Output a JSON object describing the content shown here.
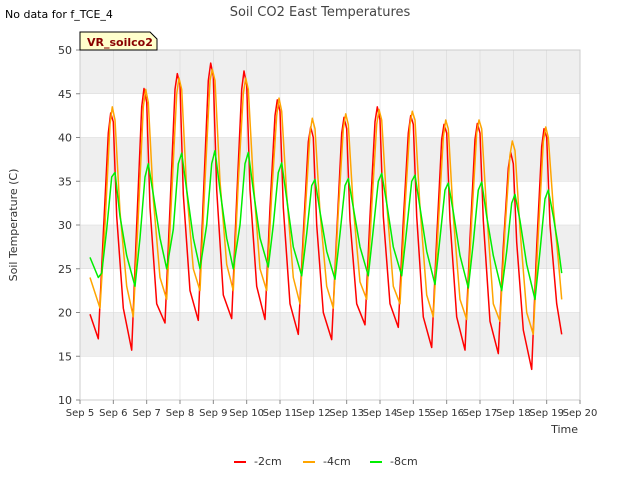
{
  "header": {
    "no_data_note": "No data for f_TCE_4",
    "station_badge": "VR_soilco2"
  },
  "colors": {
    "band": "#efefef",
    "grid": "#d8d8d8",
    "badge_fill": "#ffffcc",
    "badge_text": "#880000"
  },
  "chart_data": {
    "type": "line",
    "title": "Soil CO2 East Temperatures",
    "xlabel": "Time",
    "ylabel": "Soil Temperature (C)",
    "xlim": [
      5,
      20
    ],
    "ylim": [
      10,
      50
    ],
    "x_ticks": [
      {
        "value": 5,
        "label": "Sep 5"
      },
      {
        "value": 6,
        "label": "Sep 6"
      },
      {
        "value": 7,
        "label": "Sep 7"
      },
      {
        "value": 8,
        "label": "Sep 8"
      },
      {
        "value": 9,
        "label": "Sep 9"
      },
      {
        "value": 10,
        "label": "Sep 10"
      },
      {
        "value": 11,
        "label": "Sep 11"
      },
      {
        "value": 12,
        "label": "Sep 12"
      },
      {
        "value": 13,
        "label": "Sep 13"
      },
      {
        "value": 14,
        "label": "Sep 14"
      },
      {
        "value": 15,
        "label": "Sep 15"
      },
      {
        "value": 16,
        "label": "Sep 16"
      },
      {
        "value": 17,
        "label": "Sep 17"
      },
      {
        "value": 18,
        "label": "Sep 18"
      },
      {
        "value": 19,
        "label": "Sep 19"
      },
      {
        "value": 20,
        "label": "Sep 20"
      }
    ],
    "y_ticks": [
      10,
      15,
      20,
      25,
      30,
      35,
      40,
      45,
      50
    ],
    "grid": true,
    "legend_position": "bottom",
    "series": [
      {
        "name": "-2cm",
        "color": "#ff0000",
        "x": [
          5.3,
          5.55,
          5.7,
          5.85,
          5.92,
          6.0,
          6.1,
          6.3,
          6.55,
          6.7,
          6.85,
          6.92,
          7.0,
          7.1,
          7.3,
          7.55,
          7.7,
          7.85,
          7.92,
          8.0,
          8.1,
          8.3,
          8.55,
          8.7,
          8.85,
          8.92,
          9.0,
          9.1,
          9.3,
          9.55,
          9.7,
          9.85,
          9.92,
          10.0,
          10.1,
          10.3,
          10.55,
          10.7,
          10.85,
          10.92,
          11.0,
          11.1,
          11.3,
          11.55,
          11.7,
          11.85,
          11.92,
          12.0,
          12.1,
          12.3,
          12.55,
          12.7,
          12.85,
          12.92,
          13.0,
          13.1,
          13.3,
          13.55,
          13.7,
          13.85,
          13.92,
          14.0,
          14.1,
          14.3,
          14.55,
          14.7,
          14.85,
          14.92,
          15.0,
          15.1,
          15.3,
          15.55,
          15.7,
          15.85,
          15.92,
          16.0,
          16.1,
          16.3,
          16.55,
          16.7,
          16.85,
          16.92,
          17.0,
          17.1,
          17.3,
          17.55,
          17.7,
          17.85,
          17.92,
          18.0,
          18.1,
          18.3,
          18.55,
          18.7,
          18.85,
          18.92,
          19.0,
          19.1,
          19.3,
          19.45
        ],
        "y": [
          19.8,
          17.0,
          29.0,
          40.5,
          42.8,
          41.8,
          31.0,
          20.5,
          15.7,
          30.0,
          43.5,
          45.6,
          44.0,
          32.0,
          21.0,
          18.8,
          32.0,
          45.5,
          47.3,
          46.0,
          33.5,
          22.5,
          19.1,
          33.0,
          46.5,
          48.5,
          47.0,
          34.0,
          22.0,
          19.3,
          33.0,
          45.5,
          47.6,
          46.0,
          34.0,
          23.0,
          19.2,
          32.0,
          42.5,
          44.3,
          43.0,
          32.0,
          21.0,
          17.5,
          29.0,
          39.5,
          41.2,
          40.0,
          30.0,
          20.0,
          16.9,
          29.0,
          40.5,
          42.3,
          41.0,
          30.5,
          21.0,
          18.6,
          31.0,
          41.8,
          43.5,
          42.0,
          31.0,
          21.0,
          18.3,
          30.5,
          40.5,
          42.5,
          41.5,
          31.0,
          19.5,
          16.0,
          28.5,
          39.8,
          41.5,
          40.5,
          30.5,
          19.5,
          15.7,
          28.5,
          39.8,
          41.6,
          40.5,
          30.5,
          19.0,
          15.3,
          27.5,
          36.5,
          38.3,
          37.0,
          28.0,
          18.0,
          13.5,
          27.5,
          39.0,
          41.0,
          40.0,
          30.0,
          21.0,
          17.5
        ]
      },
      {
        "name": "-4cm",
        "color": "#ffa500",
        "x": [
          5.3,
          5.6,
          5.75,
          5.9,
          5.97,
          6.05,
          6.2,
          6.4,
          6.6,
          6.75,
          6.9,
          6.97,
          7.05,
          7.2,
          7.4,
          7.6,
          7.75,
          7.9,
          7.97,
          8.05,
          8.2,
          8.4,
          8.6,
          8.75,
          8.9,
          8.97,
          9.05,
          9.2,
          9.4,
          9.6,
          9.75,
          9.9,
          9.97,
          10.05,
          10.2,
          10.4,
          10.6,
          10.75,
          10.9,
          10.97,
          11.05,
          11.2,
          11.4,
          11.6,
          11.75,
          11.9,
          11.97,
          12.05,
          12.2,
          12.4,
          12.6,
          12.75,
          12.9,
          12.97,
          13.05,
          13.2,
          13.4,
          13.6,
          13.75,
          13.9,
          13.97,
          14.05,
          14.2,
          14.4,
          14.6,
          14.75,
          14.9,
          14.97,
          15.05,
          15.2,
          15.4,
          15.6,
          15.75,
          15.9,
          15.97,
          16.05,
          16.2,
          16.4,
          16.6,
          16.75,
          16.9,
          16.97,
          17.05,
          17.2,
          17.4,
          17.6,
          17.75,
          17.9,
          17.97,
          18.05,
          18.2,
          18.4,
          18.6,
          18.75,
          18.9,
          18.97,
          19.05,
          19.2,
          19.35,
          19.45
        ],
        "y": [
          24.0,
          20.5,
          30.0,
          41.5,
          43.5,
          42.0,
          31.5,
          23.0,
          19.5,
          31.0,
          43.5,
          45.5,
          44.0,
          33.0,
          24.0,
          21.5,
          33.5,
          45.0,
          46.8,
          45.5,
          34.0,
          25.0,
          22.5,
          35.0,
          46.5,
          47.8,
          46.5,
          35.0,
          25.5,
          22.5,
          35.0,
          45.0,
          46.8,
          45.5,
          35.0,
          25.0,
          22.5,
          33.5,
          42.5,
          44.5,
          43.0,
          33.5,
          24.0,
          21.0,
          31.0,
          40.5,
          42.2,
          41.0,
          31.5,
          23.0,
          20.5,
          31.5,
          41.0,
          42.7,
          41.5,
          32.0,
          23.5,
          21.5,
          32.0,
          41.5,
          43.2,
          42.0,
          32.5,
          23.0,
          21.0,
          32.0,
          41.5,
          43.0,
          42.0,
          32.0,
          22.0,
          19.5,
          30.0,
          40.0,
          42.0,
          41.0,
          31.0,
          21.5,
          19.2,
          30.5,
          40.5,
          42.0,
          41.0,
          31.5,
          21.0,
          19.0,
          29.5,
          38.0,
          39.6,
          38.5,
          29.5,
          20.0,
          17.5,
          29.0,
          39.5,
          41.2,
          40.0,
          32.0,
          26.0,
          21.5
        ]
      },
      {
        "name": "-8cm",
        "color": "#00ee00",
        "x": [
          5.3,
          5.55,
          5.65,
          5.8,
          5.95,
          6.05,
          6.2,
          6.4,
          6.65,
          6.8,
          6.95,
          7.05,
          7.2,
          7.4,
          7.6,
          7.8,
          7.95,
          8.05,
          8.2,
          8.4,
          8.6,
          8.8,
          8.95,
          9.05,
          9.2,
          9.4,
          9.6,
          9.8,
          9.95,
          10.05,
          10.2,
          10.4,
          10.65,
          10.8,
          10.95,
          11.05,
          11.2,
          11.4,
          11.65,
          11.8,
          11.95,
          12.05,
          12.2,
          12.4,
          12.65,
          12.8,
          12.95,
          13.05,
          13.2,
          13.4,
          13.65,
          13.8,
          13.95,
          14.05,
          14.2,
          14.4,
          14.65,
          14.8,
          14.95,
          15.05,
          15.2,
          15.4,
          15.65,
          15.8,
          15.95,
          16.05,
          16.2,
          16.4,
          16.65,
          16.8,
          16.95,
          17.05,
          17.2,
          17.4,
          17.65,
          17.8,
          17.95,
          18.05,
          18.2,
          18.4,
          18.65,
          18.8,
          18.95,
          19.05,
          19.2,
          19.35,
          19.45
        ],
        "y": [
          26.3,
          24.0,
          24.5,
          29.5,
          35.5,
          36.0,
          31.0,
          26.5,
          23.0,
          28.5,
          35.5,
          37.0,
          33.5,
          28.5,
          25.0,
          29.5,
          37.0,
          38.2,
          34.0,
          28.5,
          25.0,
          30.0,
          37.0,
          38.5,
          34.0,
          28.5,
          25.0,
          30.0,
          37.0,
          38.3,
          34.0,
          28.5,
          25.2,
          30.0,
          36.0,
          37.1,
          33.0,
          27.5,
          24.2,
          29.0,
          34.5,
          35.2,
          31.5,
          27.0,
          23.8,
          29.0,
          34.5,
          35.3,
          32.0,
          27.5,
          24.2,
          29.5,
          35.0,
          35.9,
          32.5,
          27.5,
          24.2,
          29.5,
          35.0,
          35.7,
          32.0,
          27.0,
          23.2,
          28.5,
          34.0,
          34.8,
          31.5,
          26.5,
          22.8,
          28.0,
          34.0,
          34.9,
          31.0,
          26.5,
          22.5,
          27.0,
          32.5,
          33.5,
          30.5,
          25.5,
          21.5,
          27.0,
          33.0,
          34.0,
          31.0,
          27.5,
          24.5
        ]
      }
    ]
  }
}
